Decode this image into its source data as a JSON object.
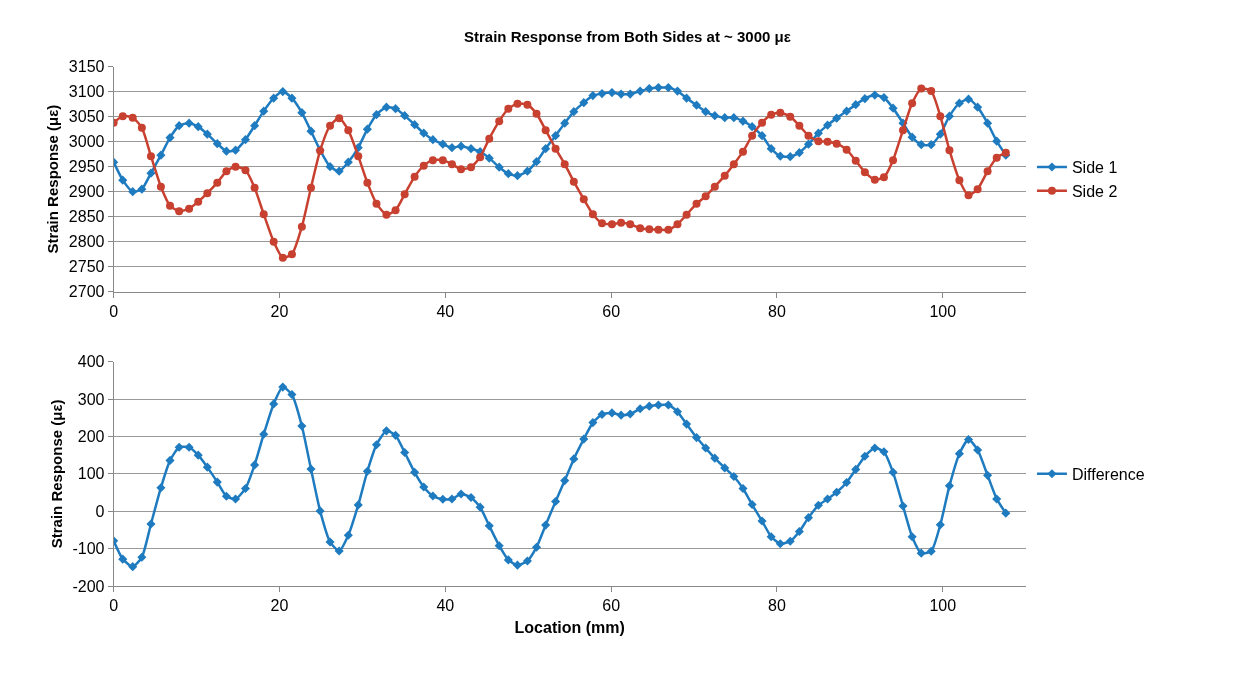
{
  "chart_data": [
    {
      "type": "line",
      "title": "Strain Response from Both Sides at ~ 3000 με",
      "ylabel": "Strain Response (με)",
      "x": [
        0,
        1.1,
        2.3,
        3.4,
        4.5,
        5.7,
        6.8,
        7.9,
        9.1,
        10.2,
        11.3,
        12.5,
        13.6,
        14.7,
        15.9,
        17.0,
        18.1,
        19.3,
        20.4,
        21.5,
        22.7,
        23.8,
        24.9,
        26.1,
        27.2,
        28.3,
        29.5,
        30.6,
        31.7,
        32.9,
        34.0,
        35.1,
        36.3,
        37.4,
        38.5,
        39.7,
        40.8,
        41.9,
        43.1,
        44.2,
        45.3,
        46.5,
        47.6,
        48.7,
        49.9,
        51.0,
        52.1,
        53.3,
        54.4,
        55.5,
        56.7,
        57.8,
        58.9,
        60.1,
        61.2,
        62.3,
        63.5,
        64.6,
        65.7,
        66.9,
        68.0,
        69.1,
        70.3,
        71.4,
        72.5,
        73.7,
        74.8,
        75.9,
        77.0,
        78.2,
        79.3,
        80.4,
        81.6,
        82.7,
        83.8,
        85.0,
        86.1,
        87.2,
        88.4,
        89.5,
        90.6,
        91.8,
        92.9,
        94.0,
        95.2,
        96.3,
        97.4,
        98.6,
        99.7,
        100.8,
        102.0,
        103.1,
        104.2,
        105.4,
        106.5,
        107.6
      ],
      "series": [
        {
          "name": "Side 1",
          "color": "#1f7bbf",
          "marker": "diamond",
          "values": [
            2959,
            2923,
            2900,
            2905,
            2937,
            2973,
            3008,
            3032,
            3037,
            3030,
            3015,
            2996,
            2981,
            2983,
            3004,
            3032,
            3061,
            3087,
            3100,
            3087,
            3058,
            3021,
            2983,
            2950,
            2941,
            2959,
            2988,
            3025,
            3054,
            3069,
            3066,
            3052,
            3034,
            3017,
            3004,
            2995,
            2988,
            2991,
            2986,
            2980,
            2967,
            2949,
            2936,
            2932,
            2941,
            2960,
            2986,
            3012,
            3037,
            3060,
            3078,
            3092,
            3096,
            3098,
            3095,
            3095,
            3101,
            3106,
            3108,
            3108,
            3101,
            3087,
            3073,
            3060,
            3052,
            3048,
            3048,
            3041,
            3030,
            3012,
            2986,
            2971,
            2970,
            2978,
            2995,
            3017,
            3033,
            3047,
            3061,
            3074,
            3086,
            3093,
            3088,
            3067,
            3037,
            3009,
            2994,
            2994,
            3015,
            3051,
            3077,
            3085,
            3069,
            3037,
            3001,
            2973
          ]
        },
        {
          "name": "Side 2",
          "color": "#c8402f",
          "marker": "circle",
          "values": [
            3038,
            3051,
            3048,
            3028,
            2971,
            2910,
            2872,
            2861,
            2866,
            2880,
            2897,
            2918,
            2941,
            2950,
            2943,
            2908,
            2855,
            2800,
            2768,
            2775,
            2830,
            2908,
            2982,
            3032,
            3047,
            3023,
            2971,
            2918,
            2876,
            2854,
            2863,
            2895,
            2930,
            2952,
            2963,
            2963,
            2955,
            2945,
            2949,
            2969,
            3006,
            3041,
            3066,
            3076,
            3074,
            3056,
            3023,
            2986,
            2955,
            2920,
            2885,
            2855,
            2837,
            2835,
            2838,
            2835,
            2827,
            2825,
            2824,
            2824,
            2835,
            2854,
            2876,
            2891,
            2910,
            2932,
            2955,
            2980,
            3012,
            3038,
            3054,
            3058,
            3050,
            3032,
            3012,
            3001,
            3000,
            2996,
            2984,
            2962,
            2939,
            2924,
            2929,
            2963,
            3023,
            3077,
            3106,
            3101,
            3051,
            2983,
            2923,
            2893,
            2905,
            2941,
            2968,
            2978
          ]
        }
      ],
      "xlim": [
        0,
        110
      ],
      "xticks": [
        0,
        20,
        40,
        60,
        80,
        100
      ],
      "ylim": [
        2700,
        3150
      ],
      "yticks": [
        2700,
        2750,
        2800,
        2850,
        2900,
        2950,
        3000,
        3050,
        3100,
        3150
      ],
      "grid": "y",
      "legend": "right",
      "line_style": "solid"
    },
    {
      "type": "line",
      "xlabel": "Location (mm)",
      "ylabel": "Strain Response (με)",
      "x": [
        0,
        1.1,
        2.3,
        3.4,
        4.5,
        5.7,
        6.8,
        7.9,
        9.1,
        10.2,
        11.3,
        12.5,
        13.6,
        14.7,
        15.9,
        17.0,
        18.1,
        19.3,
        20.4,
        21.5,
        22.7,
        23.8,
        24.9,
        26.1,
        27.2,
        28.3,
        29.5,
        30.6,
        31.7,
        32.9,
        34.0,
        35.1,
        36.3,
        37.4,
        38.5,
        39.7,
        40.8,
        41.9,
        43.1,
        44.2,
        45.3,
        46.5,
        47.6,
        48.7,
        49.9,
        51.0,
        52.1,
        53.3,
        54.4,
        55.5,
        56.7,
        57.8,
        58.9,
        60.1,
        61.2,
        62.3,
        63.5,
        64.6,
        65.7,
        66.9,
        68.0,
        69.1,
        70.3,
        71.4,
        72.5,
        73.7,
        74.8,
        75.9,
        77.0,
        78.2,
        79.3,
        80.4,
        81.6,
        82.7,
        83.8,
        85.0,
        86.1,
        87.2,
        88.4,
        89.5,
        90.6,
        91.8,
        92.9,
        94.0,
        95.2,
        96.3,
        97.4,
        98.6,
        99.7,
        100.8,
        102.0,
        103.1,
        104.2,
        105.4,
        106.5,
        107.6
      ],
      "series": [
        {
          "name": "Difference",
          "color": "#1f7bbf",
          "marker": "diamond",
          "values": [
            -79,
            -128,
            -148,
            -123,
            -34,
            63,
            136,
            171,
            171,
            150,
            118,
            78,
            40,
            33,
            61,
            124,
            206,
            287,
            332,
            312,
            228,
            113,
            1,
            -82,
            -106,
            -64,
            17,
            107,
            178,
            215,
            203,
            157,
            104,
            65,
            41,
            32,
            33,
            46,
            37,
            11,
            -39,
            -92,
            -130,
            -144,
            -133,
            -96,
            -37,
            26,
            82,
            140,
            193,
            237,
            259,
            263,
            257,
            260,
            274,
            281,
            284,
            284,
            266,
            233,
            197,
            169,
            142,
            116,
            93,
            61,
            18,
            -26,
            -68,
            -87,
            -80,
            -54,
            -17,
            16,
            33,
            51,
            77,
            112,
            147,
            169,
            159,
            104,
            14,
            -68,
            -112,
            -107,
            -36,
            68,
            154,
            192,
            164,
            96,
            33,
            -5
          ]
        }
      ],
      "xlim": [
        0,
        110
      ],
      "xticks": [
        0,
        20,
        40,
        60,
        80,
        100
      ],
      "ylim": [
        -200,
        400
      ],
      "yticks": [
        -200,
        -100,
        0,
        100,
        200,
        300,
        400
      ],
      "grid": "y",
      "legend": "right",
      "line_style": "solid"
    }
  ]
}
